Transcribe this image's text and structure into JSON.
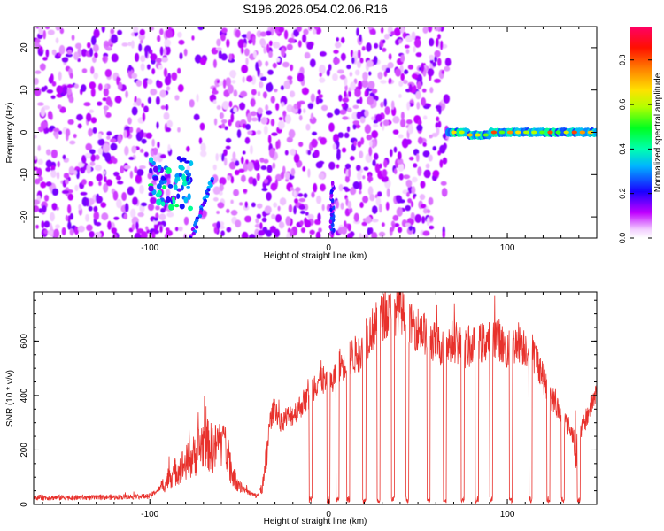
{
  "title": "S196.2026.054.02.06.R16",
  "chart_data": [
    {
      "type": "heatmap",
      "xlabel": "Height of straight line (km)",
      "ylabel": "Frequency (Hz)",
      "xlim": [
        -165,
        150
      ],
      "ylim": [
        -25,
        25
      ],
      "x_ticks": [
        -100,
        0,
        100
      ],
      "y_ticks": [
        -20,
        -10,
        0,
        10,
        20
      ],
      "colorbar": {
        "label": "Normalized spectral amplitude",
        "ticks": [
          "0.0",
          "0.2",
          "0.4",
          "0.6",
          "0.8"
        ],
        "range": [
          0,
          0.95
        ],
        "colors": [
          "#ffffff",
          "#ff00ff",
          "#1a00ff",
          "#00e5ff",
          "#00ff5a",
          "#c8ff00",
          "#ffe100",
          "#ff7a00",
          "#ff0000",
          "#ff0066"
        ]
      },
      "features": [
        {
          "name": "broadband-noise-region",
          "x_range": [
            -165,
            67
          ],
          "y_range": [
            -25,
            25
          ],
          "amplitude": 0.1
        },
        {
          "name": "cluster-near-minus-90km",
          "x_range": [
            -100,
            -77
          ],
          "y_range": [
            -18,
            -6
          ],
          "amplitude": 0.35
        },
        {
          "name": "streak-near-minus-72km",
          "x_range": [
            -77,
            -65
          ],
          "y_range": [
            -25,
            -11
          ],
          "amplitude": 0.25
        },
        {
          "name": "streak-near-0km",
          "x_range": [
            -2,
            6
          ],
          "y_range": [
            -24,
            -12
          ],
          "amplitude": 0.2
        },
        {
          "name": "zero-frequency-line",
          "x_range": [
            67,
            150
          ],
          "y": 0,
          "amplitude": 0.9
        }
      ]
    },
    {
      "type": "line",
      "xlabel": "Height of straight line (km)",
      "ylabel": "SNR (10 * v/v)",
      "xlim": [
        -165,
        150
      ],
      "ylim": [
        0,
        780
      ],
      "x_ticks": [
        -100,
        0,
        100
      ],
      "y_ticks": [
        0,
        200,
        400,
        600
      ],
      "line_color": "#e8312c",
      "envelope": {
        "x": [
          -165,
          -130,
          -100,
          -94,
          -88,
          -80,
          -75,
          -70,
          -64,
          -58,
          -54,
          -48,
          -44,
          -40,
          -36,
          -33,
          -30,
          -27,
          -24,
          -20,
          -16,
          -12,
          -8,
          -4,
          0,
          6,
          12,
          18,
          24,
          30,
          36,
          40,
          44,
          48,
          52,
          58,
          64,
          70,
          76,
          82,
          88,
          94,
          100,
          106,
          110,
          114,
          118,
          122,
          126,
          130,
          134,
          138,
          142,
          146,
          150
        ],
        "y": [
          25,
          25,
          30,
          60,
          110,
          150,
          180,
          230,
          200,
          270,
          110,
          60,
          40,
          30,
          90,
          300,
          360,
          300,
          320,
          330,
          360,
          390,
          440,
          470,
          420,
          510,
          540,
          560,
          640,
          690,
          700,
          730,
          660,
          650,
          640,
          600,
          580,
          600,
          570,
          580,
          600,
          620,
          560,
          600,
          580,
          560,
          510,
          430,
          380,
          330,
          290,
          240,
          280,
          350,
          420
        ]
      },
      "dropouts": [
        -10,
        0,
        5,
        11,
        20,
        28,
        36,
        44,
        56,
        65,
        75,
        83,
        91,
        102,
        113,
        123,
        131,
        140
      ]
    }
  ]
}
